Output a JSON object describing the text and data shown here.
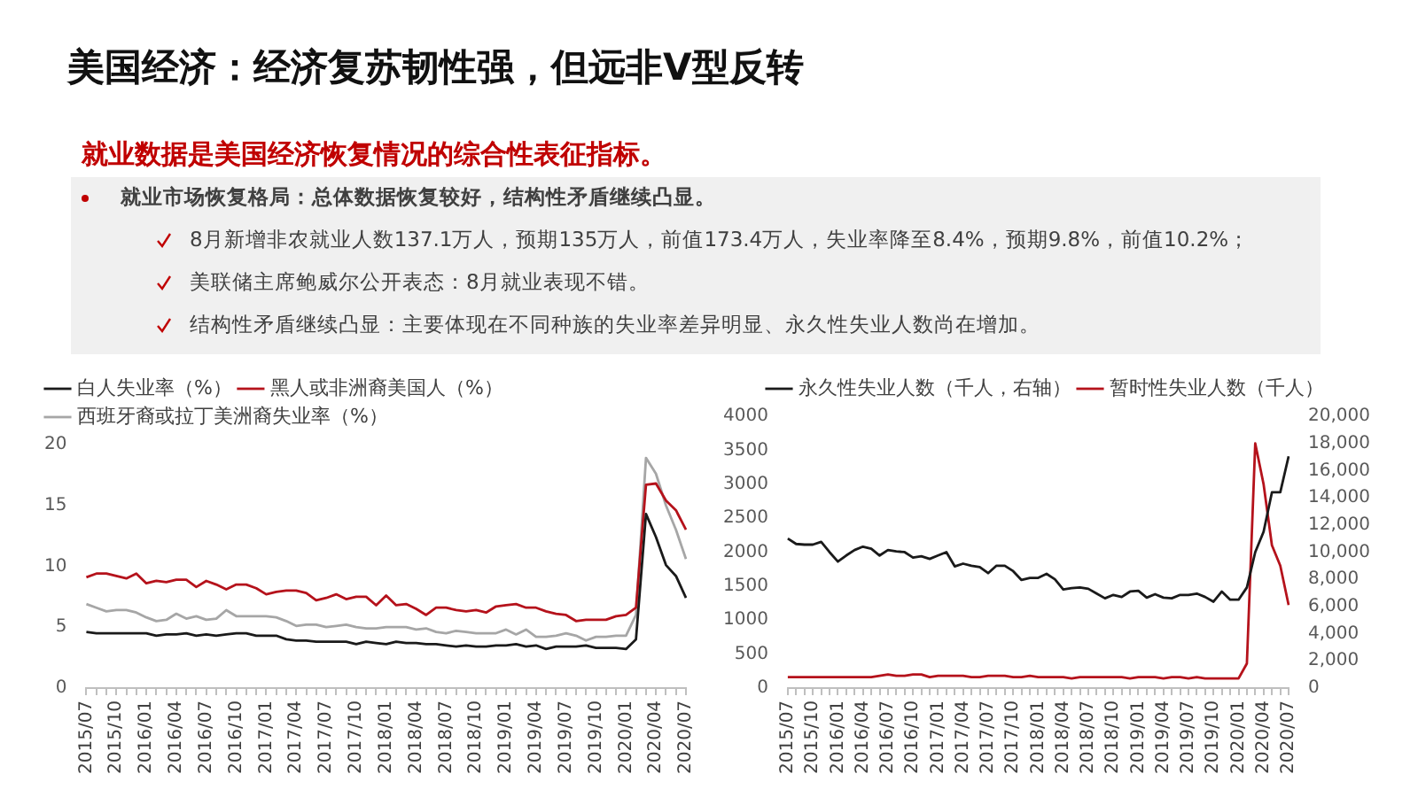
{
  "chart_data": [
    {
      "type": "other",
      "title": "美国经济：经济复苏韧性强，但远非V型反转",
      "subtitle": "就业数据是美国经济恢复情况的综合性表征指标。",
      "annotations": [
        "就业市场恢复格局：总体数据恢复较好，结构性矛盾继续凸显。",
        "8月新增非农就业人数137.1万人，预期135万人，前值173.4万人，失业率降至8.4%，预期9.8%，前值10.2%；",
        "美联储主席鲍威尔公开表态：8月就业表现不错。",
        "结构性矛盾继续凸显：主要体现在不同种族的失业率差异明显、永久性失业人数尚在增加。"
      ]
    },
    {
      "type": "line",
      "legend": "top left",
      "ylim": [
        0,
        20
      ],
      "yticks": [
        0,
        5,
        10,
        15,
        20
      ],
      "categories": [
        "2015/07",
        null,
        null,
        "2015/10",
        null,
        null,
        "2016/01",
        null,
        null,
        "2016/04",
        null,
        null,
        "2016/07",
        null,
        null,
        "2016/10",
        null,
        null,
        "2017/01",
        null,
        null,
        "2017/04",
        null,
        null,
        "2017/07",
        null,
        null,
        "2017/10",
        null,
        null,
        "2018/01",
        null,
        null,
        "2018/04",
        null,
        null,
        "2018/07",
        null,
        null,
        "2018/10",
        null,
        null,
        "2019/01",
        null,
        null,
        "2019/04",
        null,
        null,
        "2019/07",
        null,
        null,
        "2019/10",
        null,
        null,
        "2020/01",
        null,
        null,
        "2020/04",
        null,
        null,
        "2020/07"
      ],
      "series": [
        {
          "name": "白人失业率（%）",
          "color": "#1a1a1a",
          "values": [
            4.6,
            4.5,
            4.5,
            4.5,
            4.5,
            4.5,
            4.5,
            4.3,
            4.4,
            4.4,
            4.5,
            4.3,
            4.4,
            4.3,
            4.4,
            4.5,
            4.5,
            4.3,
            4.3,
            4.3,
            4.0,
            3.9,
            3.9,
            3.8,
            3.8,
            3.8,
            3.8,
            3.6,
            3.8,
            3.7,
            3.6,
            3.8,
            3.7,
            3.7,
            3.6,
            3.6,
            3.5,
            3.4,
            3.5,
            3.4,
            3.4,
            3.5,
            3.5,
            3.6,
            3.4,
            3.5,
            3.2,
            3.4,
            3.4,
            3.4,
            3.5,
            3.3,
            3.3,
            3.3,
            3.2,
            4.0,
            14.3,
            12.4,
            10.1,
            9.2,
            7.4
          ]
        },
        {
          "name": "黑人或非洲裔美国人（%）",
          "color": "#b5121b",
          "values": [
            9.1,
            9.4,
            9.4,
            9.2,
            9.0,
            9.4,
            8.6,
            8.8,
            8.7,
            8.9,
            8.9,
            8.3,
            8.8,
            8.5,
            8.1,
            8.5,
            8.5,
            8.2,
            7.7,
            7.9,
            8.0,
            8.0,
            7.8,
            7.2,
            7.4,
            7.7,
            7.3,
            7.5,
            7.5,
            6.8,
            7.6,
            6.8,
            6.9,
            6.5,
            6.0,
            6.6,
            6.6,
            6.4,
            6.3,
            6.4,
            6.2,
            6.7,
            6.8,
            6.9,
            6.6,
            6.6,
            6.3,
            6.1,
            6.0,
            5.5,
            5.6,
            5.6,
            5.6,
            5.9,
            6.0,
            6.6,
            16.7,
            16.8,
            15.4,
            14.6,
            13.0
          ]
        },
        {
          "name": "西班牙裔或拉丁美洲裔失业率（%）",
          "color": "#a6a6a6",
          "values": [
            6.9,
            6.6,
            6.3,
            6.4,
            6.4,
            6.2,
            5.8,
            5.5,
            5.6,
            6.1,
            5.7,
            5.9,
            5.6,
            5.7,
            6.4,
            5.9,
            5.9,
            5.9,
            5.9,
            5.8,
            5.5,
            5.1,
            5.2,
            5.2,
            5.0,
            5.1,
            5.2,
            5.0,
            4.9,
            4.9,
            5.0,
            5.0,
            5.0,
            4.8,
            4.9,
            4.6,
            4.5,
            4.7,
            4.6,
            4.5,
            4.5,
            4.5,
            4.8,
            4.4,
            4.8,
            4.2,
            4.2,
            4.3,
            4.5,
            4.3,
            3.9,
            4.2,
            4.2,
            4.3,
            4.3,
            6.0,
            18.9,
            17.6,
            15.0,
            13.0,
            10.6
          ]
        }
      ]
    },
    {
      "type": "line",
      "legend": "top",
      "ylim": [
        0,
        4000
      ],
      "yticks": [
        0,
        500,
        1000,
        1500,
        2000,
        2500,
        3000,
        3500,
        4000
      ],
      "y2lim": [
        0,
        20000
      ],
      "y2ticks": [
        0,
        {
          "value": 2000,
          "label": "2,000"
        },
        {
          "value": 4000,
          "label": "4,000"
        },
        {
          "value": 6000,
          "label": "6,000"
        },
        {
          "value": 8000,
          "label": "8,000"
        },
        {
          "value": 10000,
          "label": "10,000"
        },
        {
          "value": 12000,
          "label": "12,000"
        },
        {
          "value": 14000,
          "label": "14,000"
        },
        {
          "value": 16000,
          "label": "16,000"
        },
        {
          "value": 18000,
          "label": "18,000"
        },
        {
          "value": 20000,
          "label": "20,000"
        }
      ],
      "categories": [
        "2015/07",
        null,
        null,
        "2015/10",
        null,
        null,
        "2016/01",
        null,
        null,
        "2016/04",
        null,
        null,
        "2016/07",
        null,
        null,
        "2016/10",
        null,
        null,
        "2017/01",
        null,
        null,
        "2017/04",
        null,
        null,
        "2017/07",
        null,
        null,
        "2017/10",
        null,
        null,
        "2018/01",
        null,
        null,
        "2018/04",
        null,
        null,
        "2018/07",
        null,
        null,
        "2018/10",
        null,
        null,
        "2019/01",
        null,
        null,
        "2019/04",
        null,
        null,
        "2019/07",
        null,
        null,
        "2019/10",
        null,
        null,
        "2020/01",
        null,
        null,
        "2020/04",
        null,
        null,
        "2020/07"
      ],
      "series": [
        {
          "name": "永久性失业人数（千人，右轴）",
          "color": "#1a1a1a",
          "values": [
            2200,
            2120,
            2110,
            2110,
            2150,
            2000,
            1860,
            1950,
            2030,
            2080,
            2050,
            1950,
            2030,
            2010,
            2000,
            1920,
            1940,
            1900,
            1950,
            2000,
            1790,
            1830,
            1800,
            1780,
            1690,
            1800,
            1800,
            1720,
            1590,
            1620,
            1620,
            1680,
            1600,
            1450,
            1470,
            1480,
            1460,
            1390,
            1320,
            1370,
            1340,
            1420,
            1430,
            1330,
            1380,
            1330,
            1320,
            1370,
            1370,
            1390,
            1340,
            1270,
            1420,
            1300,
            1300,
            1480,
            2000,
            2300,
            2880,
            2880,
            3410
          ]
        },
        {
          "name": "暂时性失业人数（千人）",
          "color": "#b5121b",
          "axis": "y2",
          "values": [
            800,
            800,
            800,
            800,
            800,
            800,
            800,
            800,
            800,
            800,
            800,
            900,
            1000,
            900,
            900,
            1000,
            1000,
            800,
            900,
            900,
            900,
            900,
            800,
            800,
            900,
            900,
            900,
            800,
            800,
            900,
            800,
            800,
            800,
            800,
            700,
            800,
            800,
            800,
            800,
            800,
            800,
            700,
            800,
            800,
            800,
            700,
            800,
            800,
            700,
            800,
            700,
            700,
            700,
            700,
            700,
            1800,
            18000,
            15000,
            10500,
            9000,
            6100
          ]
        }
      ]
    }
  ]
}
